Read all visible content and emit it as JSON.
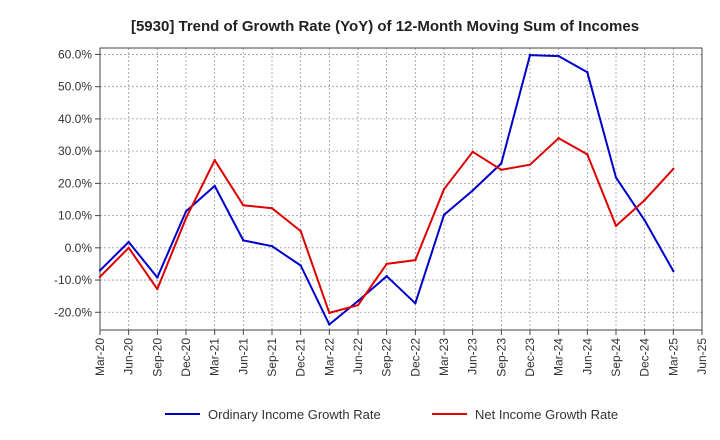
{
  "chart_data": {
    "type": "line",
    "title": "[5930]  Trend of Growth Rate (YoY) of 12-Month Moving Sum of Incomes",
    "xlabel": "",
    "ylabel": "",
    "x": [
      "Mar-20",
      "Jun-20",
      "Sep-20",
      "Dec-20",
      "Mar-21",
      "Jun-21",
      "Sep-21",
      "Dec-21",
      "Mar-22",
      "Jun-22",
      "Sep-22",
      "Dec-22",
      "Mar-23",
      "Jun-23",
      "Sep-23",
      "Dec-23",
      "Mar-24",
      "Jun-24",
      "Sep-24",
      "Dec-24",
      "Mar-25",
      "Jun-25"
    ],
    "ylim": [
      -25.5,
      62
    ],
    "yticks": [
      60,
      50,
      40,
      30,
      20,
      10,
      0,
      -10,
      -20
    ],
    "ytick_labels": [
      "60.0%",
      "50.0%",
      "40.0%",
      "30.0%",
      "20.0%",
      "10.0%",
      "0.0%",
      "-10.0%",
      "-20.0%"
    ],
    "grid": true,
    "legend_position": "bottom",
    "series": [
      {
        "name": "Ordinary Income Growth Rate",
        "color": "#0000cc",
        "values": [
          -7.0,
          1.8,
          -9.2,
          11.3,
          19.2,
          2.3,
          0.5,
          -5.5,
          -23.8,
          -16.5,
          -8.8,
          -17.2,
          10.2,
          17.8,
          26.2,
          59.8,
          59.5,
          54.5,
          21.8,
          8.5,
          -7.2,
          null
        ]
      },
      {
        "name": "Net Income Growth Rate",
        "color": "#dd0000",
        "values": [
          -9.0,
          0.0,
          -12.8,
          9.2,
          27.2,
          13.2,
          12.3,
          5.2,
          -20.2,
          -17.8,
          -5.0,
          -3.8,
          18.2,
          29.8,
          24.2,
          25.8,
          34.0,
          29.0,
          6.8,
          14.8,
          24.5,
          null
        ]
      }
    ]
  }
}
